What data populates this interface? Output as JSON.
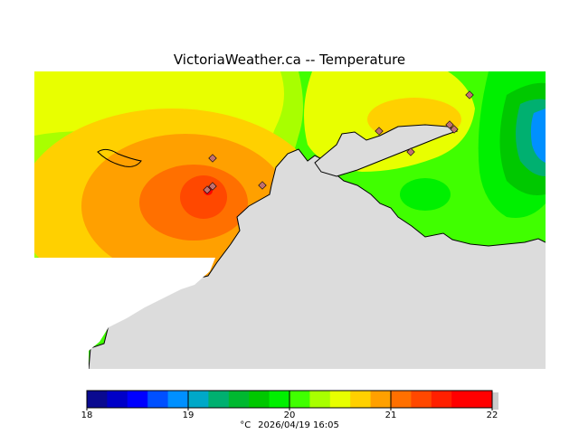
{
  "title": "VictoriaWeather.ca -- Temperature",
  "colorbar": {
    "min": 18,
    "max": 22,
    "ticks": [
      "18",
      "19",
      "20",
      "21",
      "22"
    ],
    "colors": [
      "#0a0a90",
      "#0000c8",
      "#0000ff",
      "#0050ff",
      "#0090ff",
      "#00a8c8",
      "#00b070",
      "#00b830",
      "#00c800",
      "#00f000",
      "#40ff00",
      "#a8ff00",
      "#e8ff00",
      "#ffd000",
      "#ffa000",
      "#ff7000",
      "#ff4800",
      "#ff2000",
      "#ff0000"
    ]
  },
  "caption": {
    "unit": "°C",
    "timestamp": "2026/04/19 16:05"
  },
  "colors": {
    "land": "#dcdcdc",
    "coast": "#000000",
    "station": "#c07070"
  },
  "stations": [
    {
      "name": "",
      "icon": "station-diamond-icon"
    }
  ]
}
